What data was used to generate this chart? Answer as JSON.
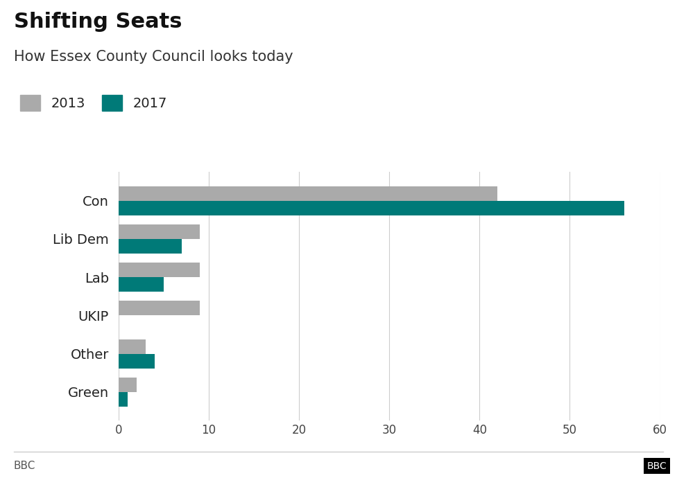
{
  "title": "Shifting Seats",
  "subtitle": "How Essex County Council looks today",
  "categories": [
    "Con",
    "Lib Dem",
    "Lab",
    "UKIP",
    "Other",
    "Green"
  ],
  "values_2013": [
    42,
    9,
    9,
    9,
    3,
    2
  ],
  "values_2017": [
    56,
    7,
    5,
    0,
    4,
    1
  ],
  "color_2013": "#aaaaaa",
  "color_2017": "#007a78",
  "xlim": [
    0,
    60
  ],
  "xticks": [
    0,
    10,
    20,
    30,
    40,
    50,
    60
  ],
  "bar_height": 0.38,
  "background_color": "#ffffff",
  "label_fontsize": 14,
  "title_fontsize": 22,
  "subtitle_fontsize": 15,
  "legend_fontsize": 14,
  "tick_fontsize": 12,
  "footer_text": "BBC",
  "legend_labels": [
    "2013",
    "2017"
  ]
}
